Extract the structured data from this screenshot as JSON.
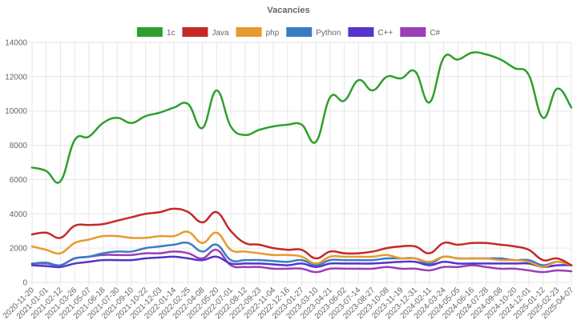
{
  "chart_data": {
    "type": "line",
    "title": "Vacancies",
    "xlabel": "",
    "ylabel": "",
    "ylim": [
      0,
      14000
    ],
    "yticks": [
      0,
      2000,
      4000,
      6000,
      8000,
      10000,
      12000,
      14000
    ],
    "ytick_labels": [
      "0",
      "2000",
      "4000",
      "6000",
      "8000",
      "10000",
      "12000",
      "14000"
    ],
    "grid": true,
    "legend_position": "top",
    "categories": [
      "2020-11-20",
      "2021-01-01",
      "2021-02-12",
      "2021-03-26",
      "2021-05-07",
      "2021-06-18",
      "2021-07-30",
      "2021-09-10",
      "2021-10-22",
      "2021-12-03",
      "2022-01-14",
      "2022-02-25",
      "2022-04-08",
      "2022-05-20",
      "2022-07-01",
      "2022-08-12",
      "2022-09-23",
      "2022-11-04",
      "2022-12-16",
      "2023-01-27",
      "2023-03-10",
      "2023-04-21",
      "2023-06-02",
      "2023-07-14",
      "2023-08-27",
      "2023-10-08",
      "2023-11-19",
      "2023-12-31",
      "2024-02-11",
      "2024-03-24",
      "2024-05-05",
      "2024-06-16",
      "2024-07-28",
      "2024-09-08",
      "2024-10-20",
      "2024-12-01",
      "2025-01-12",
      "2025-02-23",
      "2025-04-07"
    ],
    "series": [
      {
        "name": "1c",
        "color": "#2ca02c",
        "values": [
          6700,
          6500,
          5900,
          8300,
          8500,
          9300,
          9600,
          9300,
          9700,
          9900,
          10200,
          10400,
          9000,
          11200,
          9100,
          8600,
          8900,
          9100,
          9200,
          9200,
          8200,
          10800,
          10600,
          11800,
          11200,
          12000,
          11900,
          12300,
          10500,
          13100,
          13000,
          13400,
          13300,
          13000,
          12500,
          12100,
          9600,
          11300,
          10200
        ]
      },
      {
        "name": "Java",
        "color": "#c62828",
        "values": [
          2800,
          2900,
          2600,
          3300,
          3350,
          3400,
          3600,
          3800,
          4000,
          4100,
          4300,
          4100,
          3500,
          4100,
          3000,
          2300,
          2200,
          2000,
          1900,
          1900,
          1400,
          1800,
          1700,
          1700,
          1800,
          2000,
          2100,
          2100,
          1700,
          2300,
          2200,
          2300,
          2300,
          2200,
          2100,
          1900,
          1300,
          1400,
          1000
        ]
      },
      {
        "name": "php",
        "color": "#e69b2e",
        "values": [
          2100,
          1900,
          1700,
          2300,
          2500,
          2700,
          2700,
          2600,
          2600,
          2700,
          2700,
          2950,
          2300,
          2900,
          1900,
          1800,
          1700,
          1600,
          1600,
          1500,
          1100,
          1500,
          1500,
          1500,
          1500,
          1600,
          1400,
          1400,
          1200,
          1500,
          1400,
          1400,
          1400,
          1300,
          1300,
          1200,
          900,
          1200,
          1000
        ]
      },
      {
        "name": "Python",
        "color": "#3a7bc8",
        "values": [
          1100,
          1150,
          1000,
          1400,
          1500,
          1700,
          1800,
          1800,
          2000,
          2100,
          2200,
          2300,
          1800,
          2200,
          1300,
          1300,
          1300,
          1250,
          1200,
          1300,
          1000,
          1300,
          1300,
          1300,
          1300,
          1400,
          1400,
          1400,
          1100,
          1500,
          1400,
          1400,
          1400,
          1400,
          1300,
          1300,
          1000,
          1200,
          1000
        ]
      },
      {
        "name": "C++",
        "color": "#5533cc",
        "values": [
          1000,
          950,
          900,
          1100,
          1200,
          1300,
          1300,
          1300,
          1400,
          1450,
          1500,
          1400,
          1300,
          1500,
          1100,
          1100,
          1100,
          1050,
          1000,
          1100,
          900,
          1100,
          1100,
          1100,
          1100,
          1150,
          1200,
          1200,
          1000,
          1200,
          1100,
          1100,
          1100,
          1100,
          1100,
          1100,
          900,
          1000,
          1000
        ]
      },
      {
        "name": "C#",
        "color": "#9a3fb5",
        "values": [
          1100,
          1100,
          1000,
          1400,
          1500,
          1600,
          1600,
          1600,
          1700,
          1700,
          1800,
          1700,
          1400,
          1900,
          1000,
          900,
          900,
          800,
          800,
          800,
          600,
          800,
          800,
          800,
          800,
          900,
          800,
          800,
          700,
          900,
          900,
          1000,
          900,
          800,
          800,
          700,
          600,
          700,
          650
        ]
      }
    ]
  }
}
